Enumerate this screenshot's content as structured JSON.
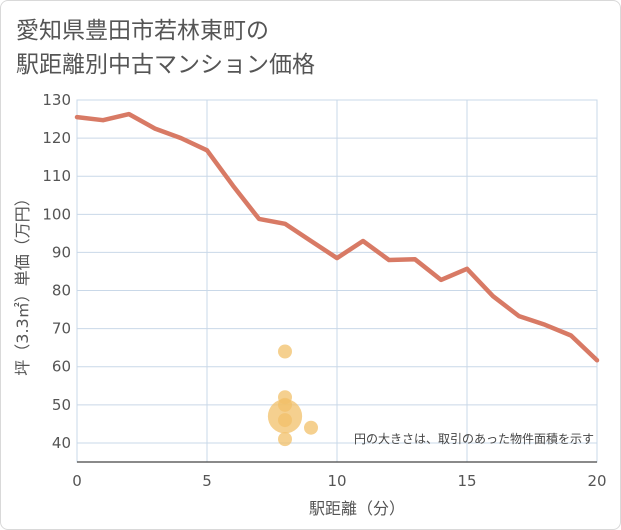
{
  "title_lines": [
    "愛知県豊田市若林東町の",
    "駅距離別中古マンション価格"
  ],
  "colors": {
    "line": "#d87a65",
    "bubble": "#f2c06a",
    "grid": "#c9d8e8",
    "axis": "#444444",
    "text": "#555555"
  },
  "chart_data": {
    "type": "line",
    "xlabel": "駅距離（分）",
    "ylabel": "坪（3.3㎡）単価（万円）",
    "xlim": [
      0,
      20
    ],
    "ylim": [
      35,
      130
    ],
    "x_ticks": [
      0,
      5,
      10,
      15,
      20
    ],
    "y_ticks": [
      40,
      50,
      60,
      70,
      80,
      90,
      100,
      110,
      120,
      130
    ],
    "grid": true,
    "series": [
      {
        "x": [
          0,
          1,
          2,
          3,
          4,
          5,
          6,
          7,
          8,
          9,
          10,
          11,
          12,
          13,
          14,
          15,
          16,
          17,
          18,
          19,
          20
        ],
        "values": [
          125.5,
          124.7,
          126.3,
          122.5,
          120.0,
          116.8,
          107.5,
          98.8,
          97.5,
          93.0,
          88.5,
          93.0,
          88.0,
          88.2,
          82.8,
          85.7,
          78.5,
          73.3,
          71.0,
          68.2,
          61.7
        ]
      }
    ],
    "bubbles": [
      {
        "x": 8,
        "y": 64,
        "size": 1
      },
      {
        "x": 8,
        "y": 52,
        "size": 1
      },
      {
        "x": 8,
        "y": 50,
        "size": 1
      },
      {
        "x": 8,
        "y": 47,
        "size": 6
      },
      {
        "x": 8,
        "y": 46,
        "size": 1
      },
      {
        "x": 8,
        "y": 41,
        "size": 1
      },
      {
        "x": 9,
        "y": 44,
        "size": 1
      }
    ],
    "annotation": "円の大きさは、取引のあった物件面積を示す"
  }
}
